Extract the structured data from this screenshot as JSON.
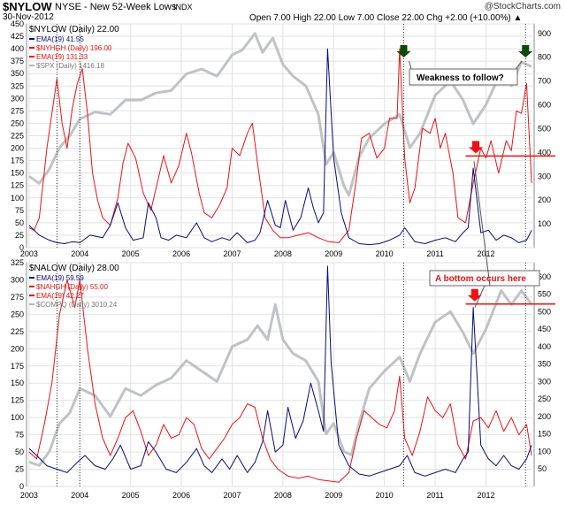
{
  "header": {
    "symbol": "$NYLOW",
    "description": "NYSE - New 52-Week Lows",
    "exchange": "INDX",
    "date": "30-Nov-2012",
    "ohlc": "Open 7.00   High 22.00   Low 7.00   Close 22.00   Chg +2.00 (+10.00%) ▲",
    "watermark": "@StockCharts.com"
  },
  "annotations": {
    "weakness": "Weakness to follow?",
    "bottom": "A bottom occurs here"
  },
  "colors": {
    "navy": "#0a0a7a",
    "red": "#ee1111",
    "gray": "#b4b8bc",
    "green_arrow": "#0b4a0b",
    "red_arrow": "#ee1111"
  },
  "chart_data": [
    {
      "type": "line",
      "title": "$NYLOW (Daily) 22.00",
      "legend": [
        {
          "label": "EMA(19) 41.55",
          "color": "#0a0a7a"
        },
        {
          "label": "$NYHGH (Daily) 196.00",
          "color": "#ee1111"
        },
        {
          "label": "EMA(19) 131.33",
          "color": "#ee1111"
        },
        {
          "label": "$SPX (Daily) 1416.18",
          "color": "#b4b8bc"
        }
      ],
      "legend_position": "top-left",
      "x_labels": [
        "2003",
        "2004",
        "2005",
        "2006",
        "2007",
        "2008",
        "2009",
        "2010",
        "2011",
        "2012"
      ],
      "x_range": [
        2002.95,
        2012.95
      ],
      "left_axis": {
        "range": [
          0,
          450
        ],
        "ticks": [
          0,
          25,
          50,
          75,
          100,
          125,
          150,
          175,
          200,
          225,
          250,
          275,
          300,
          325,
          350,
          375,
          400,
          425,
          450
        ]
      },
      "right_axis": {
        "range": [
          0,
          940
        ],
        "ticks": [
          100,
          200,
          300,
          400,
          500,
          600,
          700,
          800,
          900
        ]
      },
      "grid": true,
      "series": [
        {
          "name": "$NYHGH EMA(19)",
          "axis": "left",
          "x": [
            2003.0,
            2003.1,
            2003.2,
            2003.35,
            2003.45,
            2003.55,
            2003.65,
            2003.75,
            2003.85,
            2003.95,
            2004.05,
            2004.15,
            2004.25,
            2004.35,
            2004.45,
            2004.6,
            2004.75,
            2004.85,
            2004.95,
            2005.1,
            2005.25,
            2005.4,
            2005.55,
            2005.65,
            2005.8,
            2005.95,
            2006.1,
            2006.2,
            2006.35,
            2006.45,
            2006.6,
            2006.75,
            2006.9,
            2007.0,
            2007.15,
            2007.3,
            2007.4,
            2007.5,
            2007.65,
            2007.8,
            2007.95,
            2008.1,
            2008.3,
            2008.5,
            2008.7,
            2008.9,
            2009.1,
            2009.3,
            2009.45,
            2009.55,
            2009.7,
            2009.85,
            2010.0,
            2010.1,
            2010.25,
            2010.3,
            2010.4,
            2010.5,
            2010.6,
            2010.75,
            2010.9,
            2011.0,
            2011.1,
            2011.2,
            2011.35,
            2011.45,
            2011.6,
            2011.75,
            2011.9,
            2012.0,
            2012.1,
            2012.25,
            2012.4,
            2012.5,
            2012.6,
            2012.7,
            2012.8,
            2012.9
          ],
          "y": [
            40,
            35,
            60,
            200,
            270,
            340,
            250,
            200,
            280,
            330,
            360,
            270,
            150,
            95,
            60,
            45,
            100,
            170,
            210,
            180,
            110,
            75,
            140,
            185,
            130,
            165,
            230,
            190,
            110,
            70,
            60,
            85,
            120,
            200,
            185,
            230,
            250,
            170,
            60,
            35,
            20,
            20,
            25,
            30,
            20,
            12,
            10,
            35,
            140,
            220,
            230,
            180,
            200,
            260,
            260,
            400,
            180,
            90,
            120,
            240,
            230,
            260,
            200,
            230,
            150,
            60,
            50,
            130,
            200,
            180,
            215,
            150,
            215,
            195,
            275,
            270,
            330,
            130
          ]
        },
        {
          "name": "EMA(19)",
          "axis": "left",
          "x": [
            2003.0,
            2003.2,
            2003.4,
            2003.55,
            2003.7,
            2003.85,
            2004.0,
            2004.2,
            2004.45,
            2004.6,
            2004.75,
            2004.9,
            2005.05,
            2005.25,
            2005.35,
            2005.5,
            2005.6,
            2005.75,
            2005.9,
            2006.1,
            2006.3,
            2006.45,
            2006.6,
            2006.8,
            2006.95,
            2007.1,
            2007.3,
            2007.45,
            2007.55,
            2007.7,
            2007.85,
            2007.95,
            2008.05,
            2008.2,
            2008.35,
            2008.5,
            2008.6,
            2008.7,
            2008.8,
            2008.88,
            2009.0,
            2009.15,
            2009.3,
            2009.5,
            2009.7,
            2009.9,
            2010.1,
            2010.3,
            2010.4,
            2010.6,
            2010.8,
            2011.0,
            2011.2,
            2011.4,
            2011.55,
            2011.65,
            2011.75,
            2011.9,
            2012.05,
            2012.2,
            2012.35,
            2012.5,
            2012.65,
            2012.8,
            2012.9
          ],
          "y": [
            45,
            25,
            15,
            10,
            8,
            12,
            10,
            25,
            20,
            45,
            90,
            40,
            15,
            20,
            90,
            60,
            20,
            15,
            25,
            20,
            50,
            20,
            12,
            20,
            15,
            30,
            10,
            15,
            30,
            95,
            45,
            40,
            95,
            35,
            60,
            120,
            80,
            50,
            70,
            400,
            180,
            70,
            20,
            8,
            6,
            8,
            15,
            25,
            40,
            12,
            8,
            15,
            20,
            12,
            30,
            40,
            160,
            30,
            35,
            15,
            25,
            20,
            10,
            15,
            35
          ]
        },
        {
          "name": "$SPX",
          "axis": "right",
          "x": [
            2003.0,
            2003.2,
            2003.4,
            2003.6,
            2003.8,
            2004.0,
            2004.3,
            2004.6,
            2004.9,
            2005.2,
            2005.5,
            2005.8,
            2006.1,
            2006.4,
            2006.7,
            2007.0,
            2007.2,
            2007.45,
            2007.6,
            2007.8,
            2008.0,
            2008.2,
            2008.45,
            2008.7,
            2008.85,
            2009.0,
            2009.2,
            2009.3,
            2009.5,
            2009.7,
            2010.0,
            2010.3,
            2010.5,
            2010.7,
            2011.0,
            2011.3,
            2011.55,
            2011.75,
            2012.0,
            2012.3,
            2012.5,
            2012.7,
            2012.9
          ],
          "y": [
            300,
            270,
            330,
            420,
            470,
            540,
            570,
            560,
            620,
            620,
            650,
            660,
            730,
            750,
            720,
            810,
            830,
            900,
            820,
            880,
            770,
            720,
            680,
            560,
            350,
            400,
            260,
            220,
            380,
            460,
            520,
            560,
            420,
            480,
            640,
            700,
            620,
            520,
            600,
            740,
            680,
            780,
            760
          ]
        }
      ],
      "markers": {
        "dotted_verticals": [
          2003.55,
          2004.0,
          2010.38,
          2012.78
        ],
        "red_horizontal_level": 385,
        "green_arrows": [
          2010.38,
          2012.78
        ],
        "red_arrow": 2011.8
      }
    },
    {
      "type": "line",
      "title": "$NALOW (Daily) 28.00",
      "legend": [
        {
          "label": "EMA(19) 59.59",
          "color": "#0a0a7a"
        },
        {
          "label": "$NAHGH (Daily) 55.00",
          "color": "#ee1111"
        },
        {
          "label": "EMA(19) 42.27",
          "color": "#ee1111"
        },
        {
          "label": "$COMPQ (Daily) 3010.24",
          "color": "#b4b8bc"
        }
      ],
      "legend_position": "top-left",
      "x_labels": [
        "2003",
        "2004",
        "2005",
        "2006",
        "2007",
        "2008",
        "2009",
        "2010",
        "2011",
        "2012"
      ],
      "x_range": [
        2002.95,
        2012.95
      ],
      "left_axis": {
        "range": [
          0,
          325
        ],
        "ticks": [
          0,
          25,
          50,
          75,
          100,
          125,
          150,
          175,
          200,
          225,
          250,
          275,
          300,
          325
        ]
      },
      "right_axis": {
        "range": [
          0,
          640
        ],
        "ticks": [
          50,
          100,
          150,
          200,
          250,
          300,
          350,
          400,
          450,
          500,
          550,
          600
        ]
      },
      "grid": true,
      "series": [
        {
          "name": "$NAHGH EMA(19)",
          "axis": "left",
          "x": [
            2003.0,
            2003.15,
            2003.3,
            2003.45,
            2003.6,
            2003.75,
            2003.9,
            2004.0,
            2004.15,
            2004.3,
            2004.45,
            2004.6,
            2004.75,
            2004.9,
            2005.05,
            2005.2,
            2005.35,
            2005.5,
            2005.65,
            2005.8,
            2005.95,
            2006.1,
            2006.25,
            2006.4,
            2006.55,
            2006.7,
            2006.85,
            2007.0,
            2007.15,
            2007.3,
            2007.45,
            2007.6,
            2007.75,
            2007.9,
            2008.1,
            2008.3,
            2008.5,
            2008.7,
            2008.9,
            2009.1,
            2009.3,
            2009.45,
            2009.6,
            2009.75,
            2009.9,
            2010.05,
            2010.2,
            2010.3,
            2010.4,
            2010.55,
            2010.7,
            2010.85,
            2011.0,
            2011.15,
            2011.3,
            2011.45,
            2011.6,
            2011.75,
            2011.9,
            2012.05,
            2012.2,
            2012.35,
            2012.5,
            2012.65,
            2012.8,
            2012.9
          ],
          "y": [
            50,
            40,
            90,
            150,
            250,
            300,
            260,
            300,
            200,
            120,
            70,
            45,
            70,
            100,
            110,
            80,
            45,
            60,
            90,
            70,
            75,
            100,
            90,
            55,
            40,
            55,
            70,
            90,
            100,
            120,
            115,
            70,
            40,
            25,
            15,
            12,
            15,
            10,
            8,
            6,
            20,
            70,
            110,
            100,
            90,
            85,
            110,
            160,
            70,
            45,
            80,
            130,
            110,
            100,
            120,
            60,
            40,
            95,
            100,
            85,
            110,
            80,
            100,
            75,
            90,
            45
          ]
        },
        {
          "name": "EMA(19)",
          "axis": "left",
          "x": [
            2003.0,
            2003.15,
            2003.35,
            2003.55,
            2003.75,
            2003.95,
            2004.1,
            2004.3,
            2004.5,
            2004.65,
            2004.8,
            2005.0,
            2005.2,
            2005.35,
            2005.5,
            2005.7,
            2005.9,
            2006.1,
            2006.3,
            2006.45,
            2006.6,
            2006.8,
            2006.95,
            2007.1,
            2007.3,
            2007.45,
            2007.6,
            2007.7,
            2007.85,
            2008.0,
            2008.1,
            2008.25,
            2008.4,
            2008.55,
            2008.7,
            2008.8,
            2008.88,
            2008.95,
            2009.1,
            2009.3,
            2009.5,
            2009.7,
            2009.9,
            2010.1,
            2010.3,
            2010.45,
            2010.6,
            2010.8,
            2011.0,
            2011.2,
            2011.4,
            2011.55,
            2011.65,
            2011.75,
            2011.9,
            2012.05,
            2012.2,
            2012.35,
            2012.5,
            2012.65,
            2012.8,
            2012.9
          ],
          "y": [
            55,
            45,
            30,
            25,
            20,
            35,
            45,
            30,
            25,
            40,
            60,
            25,
            30,
            65,
            50,
            25,
            20,
            35,
            55,
            30,
            20,
            40,
            25,
            45,
            20,
            35,
            65,
            110,
            50,
            60,
            115,
            70,
            95,
            150,
            110,
            80,
            320,
            180,
            60,
            30,
            18,
            15,
            20,
            25,
            30,
            45,
            20,
            15,
            20,
            25,
            20,
            40,
            50,
            260,
            60,
            40,
            30,
            45,
            30,
            25,
            40,
            60
          ]
        },
        {
          "name": "$COMPQ",
          "axis": "right",
          "x": [
            2003.0,
            2003.2,
            2003.4,
            2003.6,
            2003.8,
            2004.0,
            2004.3,
            2004.6,
            2004.9,
            2005.2,
            2005.5,
            2005.8,
            2006.1,
            2006.4,
            2006.7,
            2007.0,
            2007.3,
            2007.5,
            2007.7,
            2007.85,
            2008.0,
            2008.2,
            2008.45,
            2008.7,
            2008.85,
            2009.0,
            2009.2,
            2009.35,
            2009.5,
            2009.7,
            2010.0,
            2010.3,
            2010.5,
            2010.7,
            2011.0,
            2011.3,
            2011.55,
            2011.75,
            2012.0,
            2012.3,
            2012.5,
            2012.7,
            2012.9
          ],
          "y": [
            70,
            60,
            100,
            180,
            210,
            280,
            260,
            200,
            280,
            260,
            290,
            310,
            360,
            330,
            300,
            400,
            420,
            460,
            420,
            520,
            420,
            380,
            360,
            300,
            150,
            180,
            100,
            90,
            180,
            280,
            330,
            370,
            300,
            380,
            470,
            500,
            440,
            380,
            450,
            560,
            520,
            560,
            520
          ]
        }
      ],
      "markers": {
        "dotted_verticals": [
          2003.55,
          2004.0,
          2010.38,
          2012.78
        ],
        "red_horizontal_level": 265,
        "red_arrow": 2011.78
      }
    }
  ]
}
